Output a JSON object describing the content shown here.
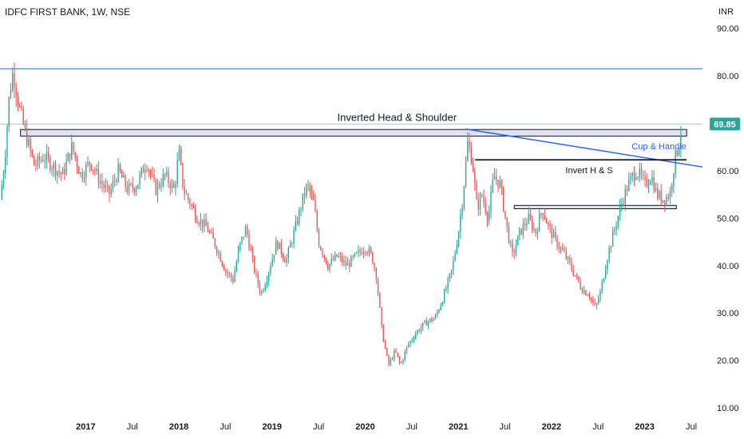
{
  "header": {
    "title": "IDFC FIRST BANK, 1W, NSE"
  },
  "colors": {
    "up": "#26a69a",
    "down": "#ef5350",
    "axis": "#131722",
    "trend": "#2962ff",
    "badge": "#26a69a"
  },
  "chart_data": {
    "type": "candlestick",
    "currency_label": "INR",
    "last_price": "69.85",
    "ylim": [
      8.5,
      96
    ],
    "xlim": [
      2016.08,
      2023.62
    ],
    "y_ticks": [
      "10.00",
      "20.00",
      "30.00",
      "40.00",
      "50.00",
      "60.00",
      "70.00",
      "80.00",
      "90.00"
    ],
    "x_ticks": [
      {
        "label": "2017",
        "x": 2017.0
      },
      {
        "label": "Jul",
        "x": 2017.5
      },
      {
        "label": "2018",
        "x": 2018.0
      },
      {
        "label": "Jul",
        "x": 2018.5
      },
      {
        "label": "2019",
        "x": 2019.0
      },
      {
        "label": "Jul",
        "x": 2019.5
      },
      {
        "label": "2020",
        "x": 2020.0
      },
      {
        "label": "Jul",
        "x": 2020.5
      },
      {
        "label": "2021",
        "x": 2021.0
      },
      {
        "label": "Jul",
        "x": 2021.5
      },
      {
        "label": "2022",
        "x": 2022.0
      },
      {
        "label": "Jul",
        "x": 2022.5
      },
      {
        "label": "2023",
        "x": 2023.0
      },
      {
        "label": "Jul",
        "x": 2023.5
      }
    ],
    "price_path": [
      [
        2016.08,
        54
      ],
      [
        2016.13,
        62
      ],
      [
        2016.18,
        76
      ],
      [
        2016.22,
        81
      ],
      [
        2016.28,
        74
      ],
      [
        2016.35,
        68
      ],
      [
        2016.45,
        61
      ],
      [
        2016.55,
        63
      ],
      [
        2016.65,
        61
      ],
      [
        2016.75,
        59
      ],
      [
        2016.85,
        65
      ],
      [
        2016.95,
        59
      ],
      [
        2017.05,
        62
      ],
      [
        2017.15,
        58
      ],
      [
        2017.25,
        55
      ],
      [
        2017.35,
        60
      ],
      [
        2017.45,
        56
      ],
      [
        2017.55,
        57
      ],
      [
        2017.65,
        62
      ],
      [
        2017.75,
        56
      ],
      [
        2017.85,
        59
      ],
      [
        2017.95,
        56
      ],
      [
        2018.0,
        64
      ],
      [
        2018.05,
        56
      ],
      [
        2018.1,
        54
      ],
      [
        2018.2,
        50
      ],
      [
        2018.3,
        48
      ],
      [
        2018.4,
        44
      ],
      [
        2018.5,
        39
      ],
      [
        2018.58,
        37
      ],
      [
        2018.65,
        44
      ],
      [
        2018.72,
        48
      ],
      [
        2018.8,
        40
      ],
      [
        2018.88,
        34
      ],
      [
        2018.95,
        38
      ],
      [
        2019.05,
        45
      ],
      [
        2019.15,
        41
      ],
      [
        2019.25,
        48
      ],
      [
        2019.33,
        54
      ],
      [
        2019.38,
        57
      ],
      [
        2019.45,
        53
      ],
      [
        2019.5,
        45
      ],
      [
        2019.6,
        40
      ],
      [
        2019.7,
        42
      ],
      [
        2019.8,
        40
      ],
      [
        2019.9,
        42
      ],
      [
        2020.0,
        44
      ],
      [
        2020.07,
        42
      ],
      [
        2020.12,
        38
      ],
      [
        2020.18,
        26
      ],
      [
        2020.25,
        19
      ],
      [
        2020.32,
        22
      ],
      [
        2020.38,
        19
      ],
      [
        2020.45,
        23
      ],
      [
        2020.55,
        26
      ],
      [
        2020.65,
        28
      ],
      [
        2020.75,
        29
      ],
      [
        2020.85,
        34
      ],
      [
        2020.93,
        39
      ],
      [
        2021.0,
        47
      ],
      [
        2021.05,
        55
      ],
      [
        2021.1,
        66
      ],
      [
        2021.15,
        62
      ],
      [
        2021.2,
        52
      ],
      [
        2021.25,
        55
      ],
      [
        2021.32,
        50
      ],
      [
        2021.38,
        59
      ],
      [
        2021.45,
        57
      ],
      [
        2021.52,
        48
      ],
      [
        2021.58,
        42
      ],
      [
        2021.66,
        47
      ],
      [
        2021.75,
        50
      ],
      [
        2021.83,
        47
      ],
      [
        2021.9,
        52
      ],
      [
        2021.97,
        48
      ],
      [
        2022.05,
        45
      ],
      [
        2022.15,
        42
      ],
      [
        2022.25,
        38
      ],
      [
        2022.33,
        35
      ],
      [
        2022.4,
        34
      ],
      [
        2022.47,
        31
      ],
      [
        2022.52,
        34
      ],
      [
        2022.6,
        42
      ],
      [
        2022.68,
        48
      ],
      [
        2022.75,
        53
      ],
      [
        2022.82,
        57
      ],
      [
        2022.9,
        60
      ],
      [
        2022.95,
        59
      ],
      [
        2023.0,
        57
      ],
      [
        2023.07,
        59
      ],
      [
        2023.13,
        55
      ],
      [
        2023.2,
        54
      ],
      [
        2023.27,
        55
      ],
      [
        2023.32,
        62
      ],
      [
        2023.37,
        66
      ],
      [
        2023.4,
        69.85
      ]
    ],
    "annotations": {
      "pattern_label": "Inverted Head & Shoulder",
      "cup_label": "Cup & Handle",
      "inv_hs_label": "Invert H & S",
      "resistance_line": 81.5,
      "neckline_zone": [
        67.3,
        68.7
      ],
      "black_neck_line": 62.3,
      "lower_zone": [
        52.0,
        52.7
      ],
      "current_line": 69.85,
      "trendline": [
        [
          2021.08,
          68.8
        ],
        [
          2023.62,
          60.8
        ]
      ]
    }
  }
}
